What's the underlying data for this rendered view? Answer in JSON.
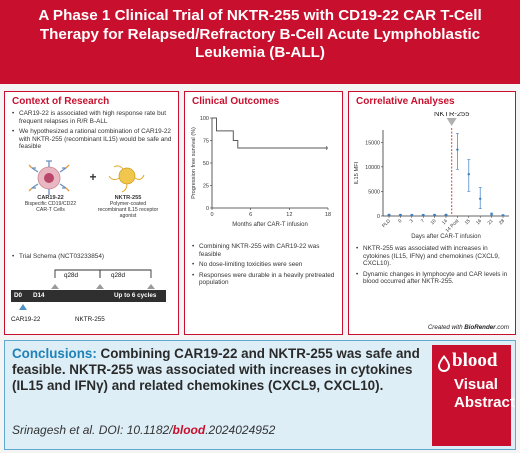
{
  "title": "A Phase 1 Clinical Trial of NKTR-255 with CD19-22 CAR T-Cell Therapy for Relapsed/Refractory B-Cell Acute Lymphoblastic Leukemia (B-ALL)",
  "context": {
    "title": "Context of Research",
    "bullets": [
      "CAR19-22 is associated with high response rate but frequent relapses in R/R B-ALL",
      "We hypothesized a rational combination of CAR19-22 with NKTR-255 (recombinant IL15) would be safe and feasible"
    ],
    "car_name": "CAR19-22",
    "car_desc": "Bispecific CD19/CD22 CAR-T Cells",
    "plus": "+",
    "nktr_name": "NKTR-255",
    "nktr_desc": "Polymer-coated recombinant IL15 receptor agonist",
    "schema_bullet": "Trial Schema (NCT03233854)",
    "schema": {
      "q28d_1": "q28d",
      "q28d_2": "q28d",
      "d0": "D0",
      "d14": "D14",
      "cycles": "Up to 6 cycles",
      "car_label": "CAR19-22",
      "nktr_label": "NKTR-255"
    },
    "colors": {
      "car_marker": "#4f93c9",
      "nktr_marker": "#9a9a9a",
      "bar": "#2f2f2f"
    }
  },
  "outcomes": {
    "title": "Clinical Outcomes",
    "bullets": [
      "Combining NKTR-255 with CAR19-22 was feasible",
      "No dose-limiting toxicities were seen",
      "Responses were durable in a heavily pretreated population"
    ]
  },
  "correlative": {
    "title": "Correlative Analyses",
    "bullets": [
      "NKTR-255 was associated with increases in cytokines (IL15, IFNγ) and chemokines (CXCL9, CXCL10).",
      "Dynamic changes in lymphocyte and CAR levels in blood occurred after NKTR-255."
    ],
    "biorender_prefix": "Created with ",
    "biorender_name": "BioRender",
    "biorender_suffix": ".com"
  },
  "chart_data": [
    {
      "type": "line",
      "subtype": "kaplan-meier-step",
      "title": "",
      "xlabel": "Months after CAR-T infusion",
      "ylabel": "Progression free survival (%)",
      "xlim": [
        0,
        18
      ],
      "ylim": [
        0,
        100
      ],
      "xticks": [
        0,
        6,
        12,
        18
      ],
      "yticks": [
        0,
        25,
        50,
        75,
        100
      ],
      "series": [
        {
          "x": [
            0,
            0.7,
            0.7,
            3.3,
            3.3,
            4.0,
            4.0,
            18
          ],
          "y": [
            100,
            100,
            85.7,
            85.7,
            75,
            75,
            66.7,
            66.7
          ]
        }
      ],
      "censor_x": [
        17.8
      ],
      "color": "#5a5a5a"
    },
    {
      "type": "scatter",
      "title": "",
      "annotation": "NKTR-255",
      "xlabel": "Days after CAR-T infusion",
      "ylabel": "IL15 MFI",
      "categories": [
        "PLD",
        "0",
        "3",
        "7",
        "10",
        "14",
        "14 Post",
        "15",
        "16",
        "21",
        "28"
      ],
      "ylim": [
        0,
        17500
      ],
      "yticks": [
        0,
        5000,
        10000,
        15000
      ],
      "series": [
        {
          "values": [
            250,
            220,
            200,
            200,
            220,
            250,
            13500,
            8500,
            3500,
            400,
            150
          ],
          "err_low": [
            150,
            120,
            100,
            100,
            120,
            150,
            9500,
            5000,
            1500,
            200,
            80
          ],
          "err_high": [
            350,
            320,
            300,
            300,
            320,
            350,
            16800,
            11500,
            5800,
            600,
            250
          ]
        }
      ],
      "dashed_after_category": "14",
      "colors": {
        "points": "#3a7fc1",
        "dashed_line": "#e03a4a",
        "marker": "#b0b0b0"
      }
    }
  ],
  "conclusions": {
    "lead": "Conclusions:",
    "text": "Combining CAR19-22 and NKTR-255 was safe and feasible. NKTR-255 was associated with increases in cytokines (IL15 and IFNγ) and related chemokines (CXCL9, CXCL10).",
    "cite_prefix": "Srinagesh et al. DOI: 10.1182/",
    "cite_bold": "blood",
    "cite_suffix": ".2024024952"
  },
  "badge": {
    "logo": "blood",
    "line1": "Visual",
    "line2": "Abstract"
  }
}
